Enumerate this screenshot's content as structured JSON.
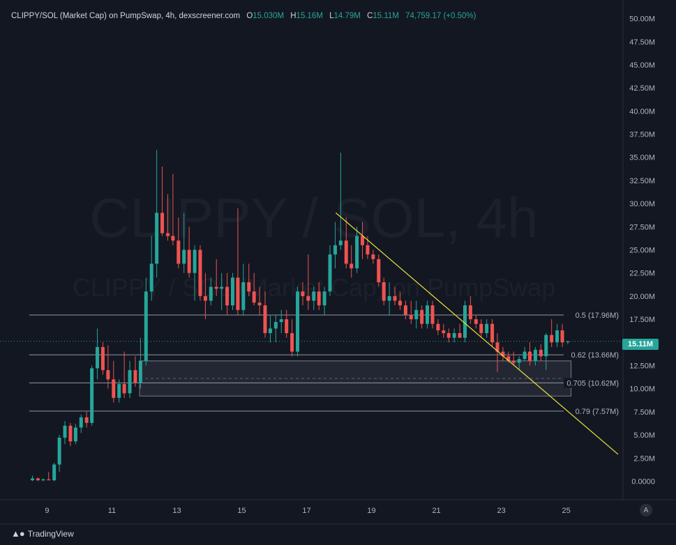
{
  "header": {
    "title": "CLIPPY/SOL (Market Cap) on PumpSwap, 4h, dexscreener.com",
    "o_label": "O",
    "o_value": "15.030M",
    "h_label": "H",
    "h_value": "15.16M",
    "l_label": "L",
    "l_value": "14.79M",
    "c_label": "C",
    "c_value": "15.11M",
    "change": "74,759.17 (+0.50%)"
  },
  "watermark": {
    "line1": "CLIPPY / SOL, 4h",
    "line2": "CLIPPY / SOL (Market Cap) on PumpSwap"
  },
  "price_badge": "15.11M",
  "footer": {
    "brand": "TradingView",
    "auto": "A"
  },
  "colors": {
    "background": "#131722",
    "up": "#26a69a",
    "down": "#ef5350",
    "trendline": "#e8e337",
    "fib": "#9598a1",
    "zone": "#2a2e39"
  },
  "chart_data": {
    "type": "candlestick",
    "y_unit": "market cap (M)",
    "ylim": [
      -2,
      52
    ],
    "y_ticks": [
      {
        "value": 50,
        "label": "50.00M"
      },
      {
        "value": 47.5,
        "label": "47.50M"
      },
      {
        "value": 45,
        "label": "45.00M"
      },
      {
        "value": 42.5,
        "label": "42.50M"
      },
      {
        "value": 40,
        "label": "40.00M"
      },
      {
        "value": 37.5,
        "label": "37.50M"
      },
      {
        "value": 35,
        "label": "35.00M"
      },
      {
        "value": 32.5,
        "label": "32.50M"
      },
      {
        "value": 30,
        "label": "30.00M"
      },
      {
        "value": 27.5,
        "label": "27.50M"
      },
      {
        "value": 25,
        "label": "25.00M"
      },
      {
        "value": 22.5,
        "label": "22.50M"
      },
      {
        "value": 20,
        "label": "20.00M"
      },
      {
        "value": 17.5,
        "label": "17.50M"
      },
      {
        "value": 12.5,
        "label": "12.50M"
      },
      {
        "value": 10,
        "label": "10.00M"
      },
      {
        "value": 7.5,
        "label": "7.50M"
      },
      {
        "value": 5,
        "label": "5.00M"
      },
      {
        "value": 2.5,
        "label": "2.50M"
      },
      {
        "value": 0,
        "label": "0.0000"
      }
    ],
    "x_ticks": [
      {
        "day": 9,
        "label": "9"
      },
      {
        "day": 11,
        "label": "11"
      },
      {
        "day": 13,
        "label": "13"
      },
      {
        "day": 15,
        "label": "15"
      },
      {
        "day": 17,
        "label": "17"
      },
      {
        "day": 19,
        "label": "19"
      },
      {
        "day": 21,
        "label": "21"
      },
      {
        "day": 23,
        "label": "23"
      },
      {
        "day": 25,
        "label": "25"
      }
    ],
    "xlim": [
      7.55,
      26.75
    ],
    "candles": [
      {
        "t": 8.55,
        "o": 0.1,
        "h": 0.6,
        "l": 0.0,
        "c": 0.3
      },
      {
        "t": 8.72,
        "o": 0.3,
        "h": 0.4,
        "l": 0.0,
        "c": 0.1
      },
      {
        "t": 8.88,
        "o": 0.1,
        "h": 0.3,
        "l": 0.0,
        "c": 0.2
      },
      {
        "t": 9.05,
        "o": 0.2,
        "h": 1.0,
        "l": 0.1,
        "c": 0.1
      },
      {
        "t": 9.22,
        "o": 0.1,
        "h": 2.0,
        "l": 0.0,
        "c": 1.8
      },
      {
        "t": 9.38,
        "o": 1.8,
        "h": 5.0,
        "l": 1.0,
        "c": 4.7
      },
      {
        "t": 9.55,
        "o": 4.7,
        "h": 6.5,
        "l": 4.0,
        "c": 6.0
      },
      {
        "t": 9.72,
        "o": 6.0,
        "h": 6.3,
        "l": 3.8,
        "c": 4.3
      },
      {
        "t": 9.88,
        "o": 4.3,
        "h": 6.2,
        "l": 4.0,
        "c": 5.8
      },
      {
        "t": 10.05,
        "o": 5.8,
        "h": 7.2,
        "l": 5.2,
        "c": 6.9
      },
      {
        "t": 10.22,
        "o": 6.9,
        "h": 7.5,
        "l": 5.8,
        "c": 6.3
      },
      {
        "t": 10.38,
        "o": 6.3,
        "h": 12.5,
        "l": 6.0,
        "c": 12.2
      },
      {
        "t": 10.55,
        "o": 12.2,
        "h": 16.5,
        "l": 11.0,
        "c": 14.5
      },
      {
        "t": 10.72,
        "o": 14.5,
        "h": 15.0,
        "l": 11.5,
        "c": 12.0
      },
      {
        "t": 10.88,
        "o": 12.0,
        "h": 14.7,
        "l": 10.0,
        "c": 11.0
      },
      {
        "t": 11.05,
        "o": 11.0,
        "h": 13.0,
        "l": 8.5,
        "c": 9.0
      },
      {
        "t": 11.22,
        "o": 9.0,
        "h": 11.0,
        "l": 8.5,
        "c": 10.5
      },
      {
        "t": 11.38,
        "o": 10.5,
        "h": 14.0,
        "l": 9.0,
        "c": 9.5
      },
      {
        "t": 11.55,
        "o": 9.5,
        "h": 13.0,
        "l": 9.0,
        "c": 12.0
      },
      {
        "t": 11.72,
        "o": 12.0,
        "h": 13.5,
        "l": 10.2,
        "c": 10.6
      },
      {
        "t": 11.88,
        "o": 10.6,
        "h": 15.5,
        "l": 10.0,
        "c": 13.0
      },
      {
        "t": 12.05,
        "o": 13.0,
        "h": 22.0,
        "l": 12.5,
        "c": 20.5
      },
      {
        "t": 12.22,
        "o": 20.5,
        "h": 26.5,
        "l": 19.5,
        "c": 23.5
      },
      {
        "t": 12.38,
        "o": 23.5,
        "h": 35.8,
        "l": 22.0,
        "c": 29.0
      },
      {
        "t": 12.55,
        "o": 29.0,
        "h": 34.0,
        "l": 26.5,
        "c": 26.8
      },
      {
        "t": 12.72,
        "o": 26.8,
        "h": 31.0,
        "l": 26.0,
        "c": 26.5
      },
      {
        "t": 12.88,
        "o": 26.5,
        "h": 33.2,
        "l": 25.5,
        "c": 26.0
      },
      {
        "t": 13.05,
        "o": 26.0,
        "h": 28.5,
        "l": 23.0,
        "c": 23.5
      },
      {
        "t": 13.22,
        "o": 23.5,
        "h": 29.0,
        "l": 22.5,
        "c": 25.0
      },
      {
        "t": 13.38,
        "o": 25.0,
        "h": 27.5,
        "l": 22.0,
        "c": 22.5
      },
      {
        "t": 13.55,
        "o": 22.5,
        "h": 25.5,
        "l": 19.5,
        "c": 25.0
      },
      {
        "t": 13.72,
        "o": 25.0,
        "h": 25.5,
        "l": 19.5,
        "c": 20.0
      },
      {
        "t": 13.88,
        "o": 20.0,
        "h": 22.5,
        "l": 17.5,
        "c": 19.5
      },
      {
        "t": 14.05,
        "o": 19.5,
        "h": 22.0,
        "l": 19.0,
        "c": 21.0
      },
      {
        "t": 14.22,
        "o": 21.0,
        "h": 24.0,
        "l": 20.0,
        "c": 20.8
      },
      {
        "t": 14.38,
        "o": 20.8,
        "h": 22.5,
        "l": 18.5,
        "c": 21.0
      },
      {
        "t": 14.55,
        "o": 21.0,
        "h": 22.5,
        "l": 18.0,
        "c": 19.0
      },
      {
        "t": 14.72,
        "o": 19.0,
        "h": 22.5,
        "l": 18.5,
        "c": 22.0
      },
      {
        "t": 14.88,
        "o": 22.0,
        "h": 29.5,
        "l": 18.0,
        "c": 18.5
      },
      {
        "t": 15.05,
        "o": 18.5,
        "h": 23.5,
        "l": 18.0,
        "c": 21.5
      },
      {
        "t": 15.22,
        "o": 21.5,
        "h": 23.5,
        "l": 20.0,
        "c": 20.5
      },
      {
        "t": 15.38,
        "o": 20.5,
        "h": 22.5,
        "l": 19.0,
        "c": 19.3
      },
      {
        "t": 15.55,
        "o": 19.3,
        "h": 21.0,
        "l": 18.0,
        "c": 19.0
      },
      {
        "t": 15.72,
        "o": 19.0,
        "h": 20.5,
        "l": 15.5,
        "c": 16.0
      },
      {
        "t": 15.88,
        "o": 16.0,
        "h": 18.0,
        "l": 15.0,
        "c": 16.5
      },
      {
        "t": 16.05,
        "o": 16.5,
        "h": 18.0,
        "l": 15.0,
        "c": 17.2
      },
      {
        "t": 16.22,
        "o": 17.2,
        "h": 18.5,
        "l": 16.0,
        "c": 17.5
      },
      {
        "t": 16.38,
        "o": 17.5,
        "h": 18.5,
        "l": 15.5,
        "c": 16.0
      },
      {
        "t": 16.55,
        "o": 16.0,
        "h": 17.5,
        "l": 13.5,
        "c": 14.0
      },
      {
        "t": 16.72,
        "o": 14.0,
        "h": 21.0,
        "l": 13.5,
        "c": 20.5
      },
      {
        "t": 16.88,
        "o": 20.5,
        "h": 21.5,
        "l": 19.0,
        "c": 20.0
      },
      {
        "t": 17.05,
        "o": 20.0,
        "h": 24.5,
        "l": 18.5,
        "c": 19.5
      },
      {
        "t": 17.22,
        "o": 19.5,
        "h": 21.0,
        "l": 18.5,
        "c": 20.5
      },
      {
        "t": 17.38,
        "o": 20.5,
        "h": 21.5,
        "l": 18.5,
        "c": 19.0
      },
      {
        "t": 17.55,
        "o": 19.0,
        "h": 21.0,
        "l": 18.0,
        "c": 20.5
      },
      {
        "t": 17.72,
        "o": 20.5,
        "h": 25.5,
        "l": 20.0,
        "c": 24.5
      },
      {
        "t": 17.88,
        "o": 24.5,
        "h": 28.0,
        "l": 23.0,
        "c": 25.5
      },
      {
        "t": 18.05,
        "o": 25.5,
        "h": 35.5,
        "l": 25.0,
        "c": 26.0
      },
      {
        "t": 18.22,
        "o": 26.0,
        "h": 28.5,
        "l": 23.0,
        "c": 23.5
      },
      {
        "t": 18.38,
        "o": 23.5,
        "h": 25.5,
        "l": 22.0,
        "c": 23.0
      },
      {
        "t": 18.55,
        "o": 23.0,
        "h": 27.5,
        "l": 22.5,
        "c": 26.5
      },
      {
        "t": 18.72,
        "o": 26.5,
        "h": 28.0,
        "l": 24.0,
        "c": 25.5
      },
      {
        "t": 18.88,
        "o": 25.5,
        "h": 26.5,
        "l": 24.0,
        "c": 24.5
      },
      {
        "t": 19.05,
        "o": 24.5,
        "h": 25.0,
        "l": 23.5,
        "c": 24.0
      },
      {
        "t": 19.22,
        "o": 24.0,
        "h": 24.5,
        "l": 21.0,
        "c": 21.5
      },
      {
        "t": 19.38,
        "o": 21.5,
        "h": 22.0,
        "l": 19.0,
        "c": 19.5
      },
      {
        "t": 19.55,
        "o": 19.5,
        "h": 21.5,
        "l": 18.0,
        "c": 20.0
      },
      {
        "t": 19.72,
        "o": 20.0,
        "h": 21.0,
        "l": 19.0,
        "c": 19.5
      },
      {
        "t": 19.88,
        "o": 19.5,
        "h": 20.5,
        "l": 18.5,
        "c": 19.0
      },
      {
        "t": 20.05,
        "o": 19.0,
        "h": 19.5,
        "l": 17.5,
        "c": 18.0
      },
      {
        "t": 20.22,
        "o": 18.0,
        "h": 19.5,
        "l": 17.0,
        "c": 17.5
      },
      {
        "t": 20.38,
        "o": 17.5,
        "h": 19.5,
        "l": 16.5,
        "c": 18.5
      },
      {
        "t": 20.55,
        "o": 18.5,
        "h": 19.0,
        "l": 16.5,
        "c": 17.0
      },
      {
        "t": 20.72,
        "o": 17.0,
        "h": 19.5,
        "l": 16.5,
        "c": 19.0
      },
      {
        "t": 20.88,
        "o": 19.0,
        "h": 19.5,
        "l": 16.5,
        "c": 17.0
      },
      {
        "t": 21.05,
        "o": 17.0,
        "h": 17.5,
        "l": 15.8,
        "c": 16.3
      },
      {
        "t": 21.22,
        "o": 16.3,
        "h": 17.0,
        "l": 15.5,
        "c": 16.0
      },
      {
        "t": 21.38,
        "o": 16.0,
        "h": 16.5,
        "l": 15.0,
        "c": 15.5
      },
      {
        "t": 21.55,
        "o": 15.5,
        "h": 16.5,
        "l": 15.0,
        "c": 16.0
      },
      {
        "t": 21.72,
        "o": 16.0,
        "h": 17.0,
        "l": 15.5,
        "c": 15.5
      },
      {
        "t": 21.88,
        "o": 15.5,
        "h": 19.5,
        "l": 15.0,
        "c": 19.0
      },
      {
        "t": 22.05,
        "o": 19.0,
        "h": 20.0,
        "l": 17.0,
        "c": 17.5
      },
      {
        "t": 22.22,
        "o": 17.5,
        "h": 18.0,
        "l": 16.5,
        "c": 17.0
      },
      {
        "t": 22.38,
        "o": 17.0,
        "h": 17.5,
        "l": 15.5,
        "c": 16.0
      },
      {
        "t": 22.55,
        "o": 16.0,
        "h": 17.5,
        "l": 15.5,
        "c": 17.0
      },
      {
        "t": 22.72,
        "o": 17.0,
        "h": 17.5,
        "l": 14.5,
        "c": 15.0
      },
      {
        "t": 22.88,
        "o": 15.0,
        "h": 16.0,
        "l": 11.8,
        "c": 14.0
      },
      {
        "t": 23.05,
        "o": 14.0,
        "h": 14.5,
        "l": 13.0,
        "c": 13.5
      },
      {
        "t": 23.22,
        "o": 13.5,
        "h": 14.0,
        "l": 12.8,
        "c": 13.0
      },
      {
        "t": 23.38,
        "o": 13.0,
        "h": 14.0,
        "l": 12.5,
        "c": 12.8
      },
      {
        "t": 23.55,
        "o": 12.8,
        "h": 13.5,
        "l": 12.0,
        "c": 13.2
      },
      {
        "t": 23.72,
        "o": 13.2,
        "h": 14.5,
        "l": 13.0,
        "c": 14.0
      },
      {
        "t": 23.88,
        "o": 14.0,
        "h": 15.0,
        "l": 12.5,
        "c": 13.0
      },
      {
        "t": 24.05,
        "o": 13.0,
        "h": 14.5,
        "l": 12.5,
        "c": 14.2
      },
      {
        "t": 24.22,
        "o": 14.2,
        "h": 14.8,
        "l": 13.0,
        "c": 13.5
      },
      {
        "t": 24.38,
        "o": 13.5,
        "h": 16.0,
        "l": 12.0,
        "c": 15.8
      },
      {
        "t": 24.55,
        "o": 15.8,
        "h": 17.5,
        "l": 14.5,
        "c": 15.0
      },
      {
        "t": 24.72,
        "o": 15.0,
        "h": 17.0,
        "l": 14.5,
        "c": 16.3
      },
      {
        "t": 24.88,
        "o": 16.3,
        "h": 17.0,
        "l": 14.5,
        "c": 15.0
      },
      {
        "t": 25.05,
        "o": 15.03,
        "h": 15.16,
        "l": 14.79,
        "c": 15.11
      }
    ],
    "fib_levels": [
      {
        "value": 17.96,
        "label": "0.5 (17.96M)"
      },
      {
        "value": 13.66,
        "label": "0.62 (13.66M)"
      },
      {
        "value": 10.62,
        "label": "0.705 (10.62M)"
      },
      {
        "value": 7.57,
        "label": "0.79 (7.57M)"
      }
    ],
    "fib_x_range": [
      8.45,
      24.95
    ],
    "zone": {
      "x_start": 11.85,
      "x_end": 25.15,
      "y_top": 13.0,
      "y_bottom": 9.2,
      "mid_value": 11.1
    },
    "trendline": {
      "x1": 17.9,
      "y1": 29.0,
      "x2": 26.6,
      "y2": 2.9
    },
    "last_price": 15.11
  }
}
